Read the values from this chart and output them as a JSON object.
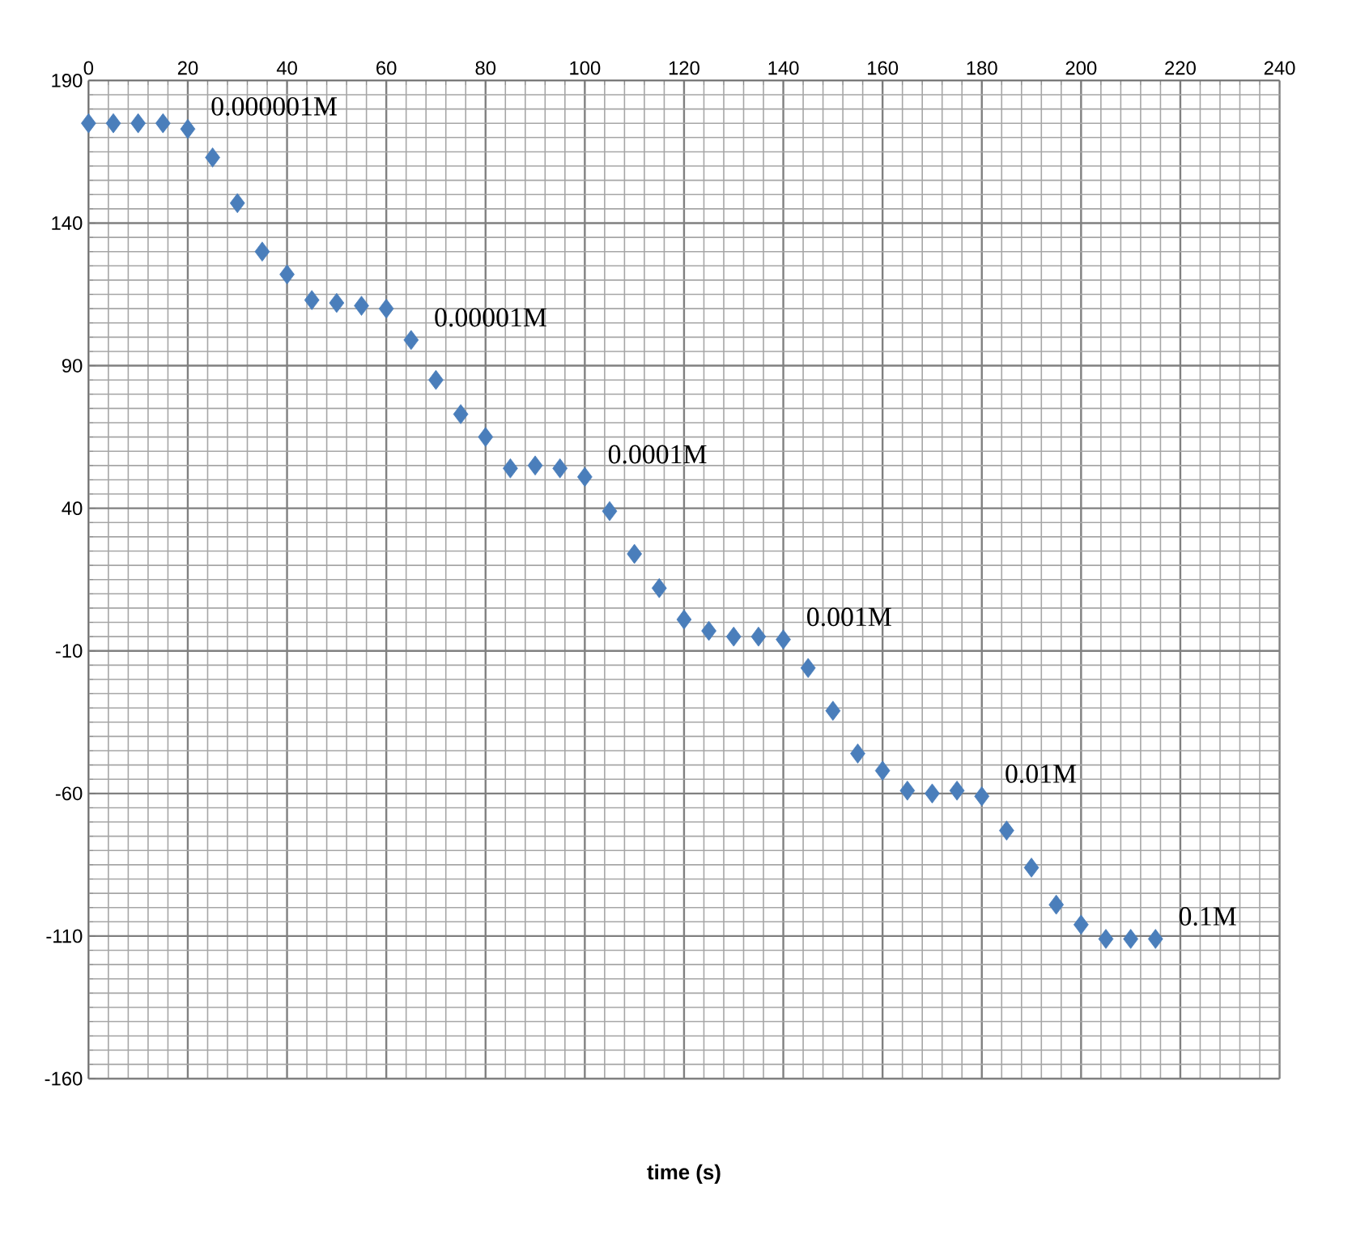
{
  "chart_data": {
    "type": "scatter",
    "xlabel": "time (s)",
    "x": [
      0,
      5,
      10,
      15,
      20,
      25,
      30,
      35,
      40,
      45,
      50,
      55,
      60,
      65,
      70,
      75,
      80,
      85,
      90,
      95,
      100,
      105,
      110,
      115,
      120,
      125,
      130,
      135,
      140,
      145,
      150,
      155,
      160,
      165,
      170,
      175,
      180,
      185,
      190,
      195,
      200,
      205,
      210,
      215
    ],
    "series": [
      {
        "color": "#4a7ebb",
        "values": [
          175,
          175,
          175,
          175,
          173,
          163,
          147,
          130,
          122,
          113,
          112,
          111,
          110,
          99,
          85,
          73,
          65,
          54,
          55,
          54,
          51,
          39,
          24,
          12,
          1,
          -3,
          -5,
          -5,
          -6,
          -16,
          -31,
          -46,
          -52,
          -59,
          -60,
          -59,
          -61,
          -73,
          -86,
          -99,
          -106,
          -111,
          -111,
          -111
        ]
      }
    ],
    "xlim": [
      0,
      240
    ],
    "xticks": [
      0,
      20,
      40,
      60,
      80,
      100,
      120,
      140,
      160,
      180,
      200,
      220,
      240
    ],
    "ylim": [
      -160,
      190
    ],
    "yticks": [
      -160,
      -110,
      -60,
      -10,
      40,
      90,
      140,
      190
    ],
    "grid": true,
    "marker": "diamond",
    "annotations": [
      {
        "text": "0.000001M",
        "x": 20,
        "y": 173
      },
      {
        "text": "0.00001M",
        "x": 65,
        "y": 99
      },
      {
        "text": "0.0001M",
        "x": 100,
        "y": 51
      },
      {
        "text": "0.001M",
        "x": 140,
        "y": -6
      },
      {
        "text": "0.01M",
        "x": 180,
        "y": -61
      },
      {
        "text": "0.1M",
        "x": 215,
        "y": -111
      }
    ]
  }
}
